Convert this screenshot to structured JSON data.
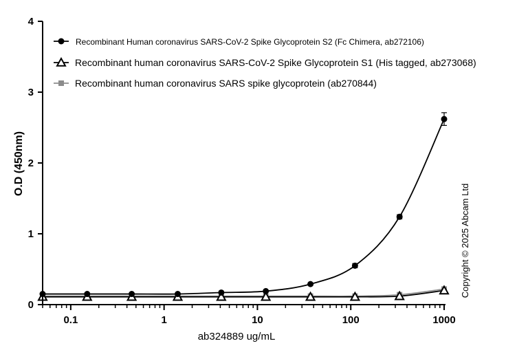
{
  "chart_data": {
    "type": "line",
    "xlabel": "ab324889 ug/mL",
    "ylabel": "O.D (450nm)",
    "xscale": "log",
    "xlim": [
      0.05,
      1000
    ],
    "ylim": [
      0,
      4
    ],
    "x_ticks": [
      {
        "value": 0.1,
        "label": "0.1"
      },
      {
        "value": 1,
        "label": "1"
      },
      {
        "value": 10,
        "label": "10"
      },
      {
        "value": 100,
        "label": "100"
      },
      {
        "value": 1000,
        "label": "1000"
      }
    ],
    "y_ticks": [
      {
        "value": 0,
        "label": "0"
      },
      {
        "value": 1,
        "label": "1"
      },
      {
        "value": 2,
        "label": "2"
      },
      {
        "value": 3,
        "label": "3"
      },
      {
        "value": 4,
        "label": "4"
      }
    ],
    "grid": false,
    "legend_position": "top-left",
    "series": [
      {
        "name": "Recombinant Human coronavirus SARS-CoV-2 Spike Glycoprotein S2 (Fc Chimera, ab272106)",
        "marker": "circle",
        "color": "#000000",
        "x": [
          0.05,
          0.15,
          0.45,
          1.4,
          4.1,
          12.3,
          37,
          111,
          333,
          1000
        ],
        "y": [
          0.15,
          0.15,
          0.15,
          0.15,
          0.17,
          0.19,
          0.29,
          0.55,
          1.24,
          2.62
        ],
        "error": [
          0,
          0,
          0,
          0,
          0,
          0,
          0.01,
          0.03,
          0.03,
          0.09
        ]
      },
      {
        "name": "Recombinant human coronavirus SARS-CoV-2 Spike Glycoprotein S1 (His tagged, ab273068)",
        "marker": "triangle",
        "color": "#000000",
        "x": [
          0.05,
          0.15,
          0.45,
          1.4,
          4.1,
          12.3,
          37,
          111,
          333,
          1000
        ],
        "y": [
          0.11,
          0.11,
          0.11,
          0.11,
          0.11,
          0.11,
          0.11,
          0.11,
          0.12,
          0.2
        ],
        "error": [
          0,
          0,
          0,
          0,
          0,
          0,
          0,
          0,
          0,
          0.01
        ]
      },
      {
        "name": "Recombinant human coronavirus SARS spike glycoprotein (ab270844)",
        "marker": "square",
        "color": "#8c8c8c",
        "x": [
          0.05,
          0.15,
          0.45,
          1.4,
          4.1,
          12.3,
          37,
          111,
          333,
          1000
        ],
        "y": [
          0.12,
          0.12,
          0.12,
          0.12,
          0.12,
          0.12,
          0.12,
          0.12,
          0.14,
          0.22
        ],
        "error": [
          0,
          0,
          0,
          0,
          0,
          0,
          0,
          0,
          0.01,
          0.01
        ]
      }
    ]
  },
  "copyright": "Copyright © 2025 Abcam Ltd"
}
